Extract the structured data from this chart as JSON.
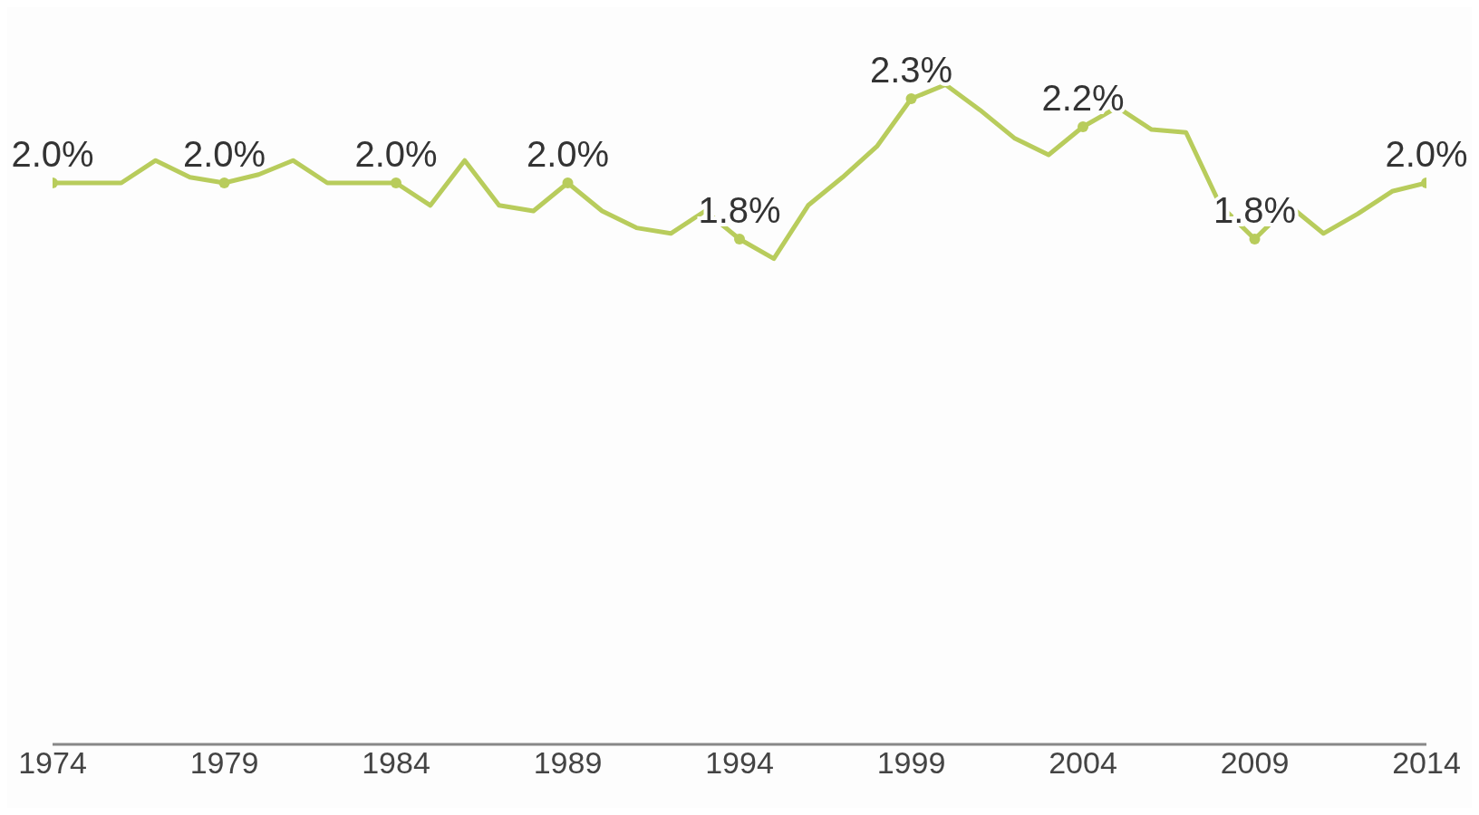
{
  "chart_data": {
    "type": "line",
    "x": [
      1974,
      1975,
      1976,
      1977,
      1978,
      1979,
      1980,
      1981,
      1982,
      1983,
      1984,
      1985,
      1986,
      1987,
      1988,
      1989,
      1990,
      1991,
      1992,
      1993,
      1994,
      1995,
      1996,
      1997,
      1998,
      1999,
      2000,
      2001,
      2002,
      2003,
      2004,
      2005,
      2006,
      2007,
      2008,
      2009,
      2010,
      2011,
      2012,
      2013,
      2014
    ],
    "values": [
      2.0,
      2.0,
      2.0,
      2.08,
      2.02,
      2.0,
      2.03,
      2.08,
      2.0,
      2.0,
      2.0,
      1.92,
      2.08,
      1.92,
      1.9,
      2.0,
      1.9,
      1.84,
      1.82,
      1.9,
      1.8,
      1.73,
      1.92,
      2.02,
      2.13,
      2.3,
      2.35,
      2.26,
      2.16,
      2.1,
      2.2,
      2.27,
      2.19,
      2.18,
      1.92,
      1.8,
      1.92,
      1.82,
      1.89,
      1.97,
      2.0
    ],
    "value_labels": [
      "2.0%",
      null,
      null,
      null,
      null,
      "2.0%",
      null,
      null,
      null,
      null,
      "2.0%",
      null,
      null,
      null,
      null,
      "2.0%",
      null,
      null,
      null,
      null,
      "1.8%",
      null,
      null,
      null,
      null,
      "2.3%",
      null,
      null,
      null,
      null,
      "2.2%",
      null,
      null,
      null,
      null,
      "1.8%",
      null,
      null,
      null,
      null,
      "2.0%"
    ],
    "color": "#b8cc5c",
    "line_style": "solid",
    "xlim": [
      1974,
      2014
    ],
    "xticks": [
      1974,
      1979,
      1984,
      1989,
      1994,
      1999,
      2004,
      2009,
      2014
    ],
    "tick_labels": "x"
  }
}
